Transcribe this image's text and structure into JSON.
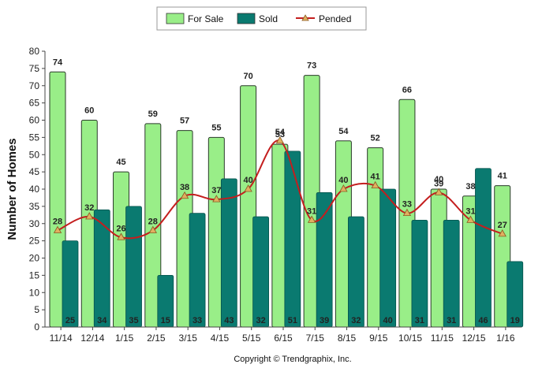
{
  "chart_data": {
    "type": "bar",
    "ylabel": "Number of Homes",
    "xlabel": "",
    "ylim": [
      0,
      80
    ],
    "yticks": [
      0,
      5,
      10,
      15,
      20,
      25,
      30,
      35,
      40,
      45,
      50,
      55,
      60,
      65,
      70,
      75,
      80
    ],
    "categories": [
      "11/14",
      "12/14",
      "1/15",
      "2/15",
      "3/15",
      "4/15",
      "5/15",
      "6/15",
      "7/15",
      "8/15",
      "9/15",
      "10/15",
      "11/15",
      "12/15",
      "1/16"
    ],
    "series": [
      {
        "name": "For Sale",
        "kind": "bar",
        "color": "#99ee88",
        "values": [
          74,
          60,
          45,
          59,
          57,
          55,
          70,
          53,
          73,
          54,
          52,
          66,
          40,
          38,
          41
        ]
      },
      {
        "name": "Sold",
        "kind": "bar",
        "color": "#0a7a70",
        "values": [
          25,
          34,
          35,
          15,
          33,
          43,
          32,
          51,
          39,
          32,
          40,
          31,
          31,
          46,
          19
        ]
      },
      {
        "name": "Pended",
        "kind": "line",
        "color": "#c41e1e",
        "marker_color": "#e0b060",
        "values": [
          28,
          32,
          26,
          28,
          38,
          37,
          40,
          54,
          31,
          40,
          41,
          33,
          39,
          31,
          27
        ]
      }
    ],
    "legend_position": "top-center",
    "grid": false,
    "footer": "Copyright © Trendgraphix, Inc."
  }
}
